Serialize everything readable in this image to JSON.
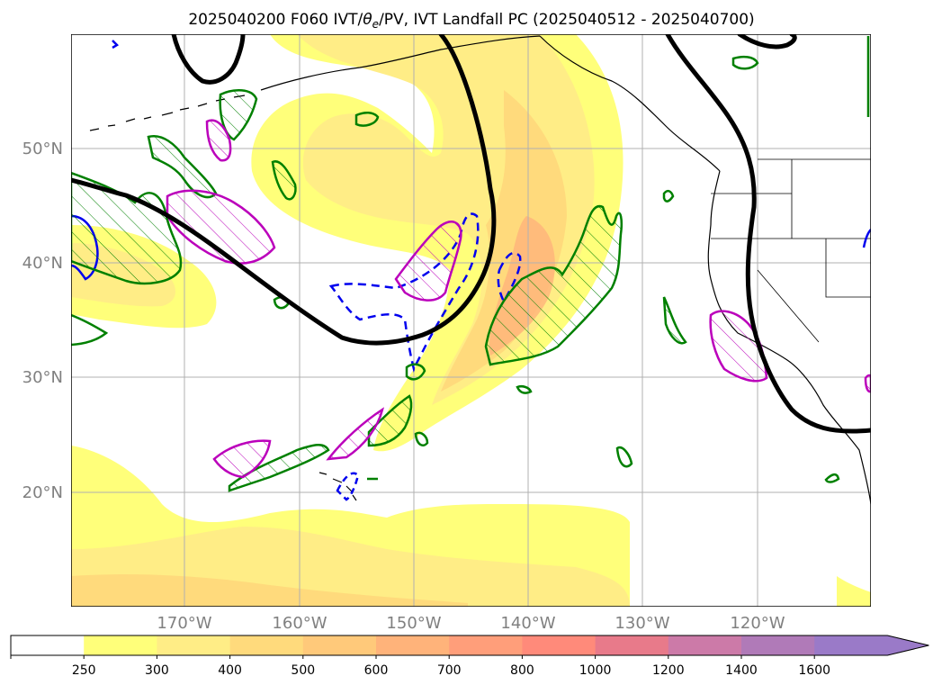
{
  "title": {
    "prefix": "2025040200 F060 IVT/",
    "theta": "θ",
    "theta_sub": "e",
    "suffix": "/PV, IVT Landfall PC (2025040512 - 2025040700)"
  },
  "map": {
    "lat_labels": [
      "50°N",
      "40°N",
      "30°N",
      "20°N"
    ],
    "lon_labels": [
      "170°W",
      "160°W",
      "150°W",
      "140°W",
      "130°W",
      "120°W"
    ]
  },
  "colorbar": {
    "ticks": [
      "250",
      "300",
      "400",
      "500",
      "600",
      "700",
      "800",
      "1000",
      "1200",
      "1400",
      "1600"
    ],
    "colors": [
      "#ffffff",
      "#ffff7a",
      "#ffed86",
      "#ffda7c",
      "#ffc97a",
      "#ffb37a",
      "#ff9e7a",
      "#ff8a7a",
      "#e87a8a",
      "#cc7aa8",
      "#b07ab8",
      "#9a7ac8"
    ]
  },
  "colors": {
    "ivt_250": "#ffff7a",
    "ivt_300": "#ffed86",
    "ivt_400": "#ffda7c",
    "ivt_600": "#ffb37a",
    "height_contour": "#000000",
    "pv_contour": "#008000",
    "theta_contour": "#bb00bb",
    "landfall_contour": "#0000ee",
    "grid": "#b0b0b0"
  }
}
